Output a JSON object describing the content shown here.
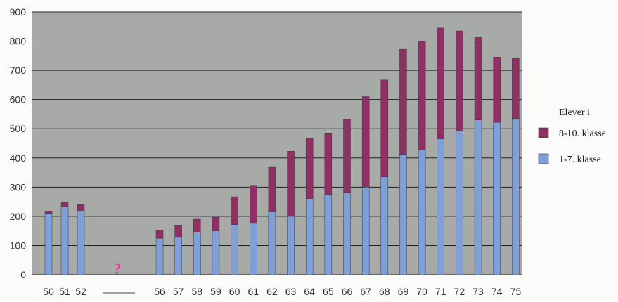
{
  "chart_data": {
    "type": "bar",
    "stacked": true,
    "categories": [
      "50",
      "51",
      "52",
      "56",
      "57",
      "58",
      "59",
      "60",
      "61",
      "62",
      "63",
      "64",
      "65",
      "66",
      "67",
      "68",
      "69",
      "70",
      "71",
      "72",
      "73",
      "74",
      "75"
    ],
    "series": [
      {
        "name": "1-7. klasse",
        "color": "#7f9fd8",
        "values": [
          210,
          232,
          218,
          125,
          128,
          145,
          150,
          172,
          176,
          215,
          200,
          260,
          275,
          280,
          300,
          335,
          412,
          428,
          465,
          492,
          530,
          522,
          535
        ]
      },
      {
        "name": "8-10. klasse",
        "color": "#8f2f63",
        "values": [
          8,
          15,
          23,
          28,
          40,
          45,
          47,
          95,
          128,
          153,
          223,
          208,
          208,
          253,
          310,
          332,
          360,
          372,
          380,
          343,
          284,
          223,
          207
        ]
      }
    ],
    "ylim": [
      0,
      900
    ],
    "yticks": [
      0,
      100,
      200,
      300,
      400,
      500,
      600,
      700,
      800,
      900
    ],
    "gap_marker": {
      "label": "?"
    },
    "legend": {
      "title": "Elever i",
      "position": "right"
    },
    "grid": true,
    "plot_bg": "#a8aaa8"
  }
}
